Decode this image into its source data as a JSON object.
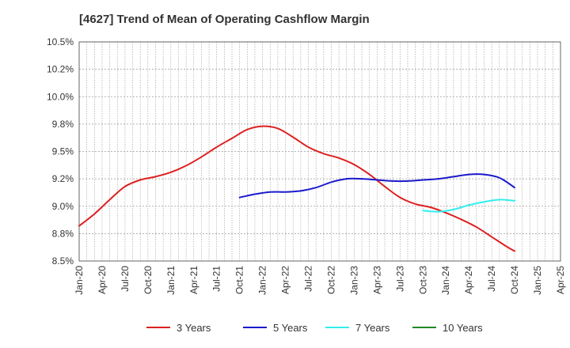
{
  "chart_data": {
    "type": "line",
    "title": "[4627]  Trend of Mean of Operating Cashflow Margin",
    "xlabel": "",
    "ylabel": "",
    "ylim": [
      8.5,
      10.5
    ],
    "yticks": [
      "8.5%",
      "8.8%",
      "9.0%",
      "9.2%",
      "9.5%",
      "9.8%",
      "10.0%",
      "10.2%",
      "10.5%"
    ],
    "xticks": [
      "Jan-20",
      "Apr-20",
      "Jul-20",
      "Oct-20",
      "Jan-21",
      "Apr-21",
      "Jul-21",
      "Oct-21",
      "Jan-22",
      "Apr-22",
      "Jul-22",
      "Oct-22",
      "Jan-23",
      "Apr-23",
      "Jul-23",
      "Oct-23",
      "Jan-24",
      "Apr-24",
      "Jul-24",
      "Oct-24",
      "Jan-25",
      "Apr-25"
    ],
    "grid": true,
    "legend_position": "bottom",
    "series": [
      {
        "name": "3 Years",
        "color": "#dd2020",
        "points": [
          [
            "Jan-20",
            8.82
          ],
          [
            "Mar-20",
            8.93
          ],
          [
            "May-20",
            9.06
          ],
          [
            "Jul-20",
            9.18
          ],
          [
            "Sep-20",
            9.24
          ],
          [
            "Nov-20",
            9.27
          ],
          [
            "Jan-21",
            9.31
          ],
          [
            "Mar-21",
            9.37
          ],
          [
            "May-21",
            9.45
          ],
          [
            "Jul-21",
            9.54
          ],
          [
            "Sep-21",
            9.62
          ],
          [
            "Nov-21",
            9.7
          ],
          [
            "Jan-22",
            9.73
          ],
          [
            "Mar-22",
            9.71
          ],
          [
            "May-22",
            9.63
          ],
          [
            "Jul-22",
            9.54
          ],
          [
            "Sep-22",
            9.48
          ],
          [
            "Nov-22",
            9.44
          ],
          [
            "Jan-23",
            9.38
          ],
          [
            "Mar-23",
            9.29
          ],
          [
            "May-23",
            9.18
          ],
          [
            "Jul-23",
            9.08
          ],
          [
            "Sep-23",
            9.02
          ],
          [
            "Nov-23",
            8.99
          ],
          [
            "Jan-24",
            8.94
          ],
          [
            "Mar-24",
            8.88
          ],
          [
            "May-24",
            8.81
          ],
          [
            "Jul-24",
            8.72
          ],
          [
            "Sep-24",
            8.63
          ],
          [
            "Oct-24",
            8.59
          ]
        ]
      },
      {
        "name": "5 Years",
        "color": "#1a1acc",
        "points": [
          [
            "Oct-21",
            9.08
          ],
          [
            "Dec-21",
            9.11
          ],
          [
            "Feb-22",
            9.13
          ],
          [
            "Apr-22",
            9.13
          ],
          [
            "Jun-22",
            9.14
          ],
          [
            "Aug-22",
            9.17
          ],
          [
            "Oct-22",
            9.22
          ],
          [
            "Dec-22",
            9.25
          ],
          [
            "Feb-23",
            9.25
          ],
          [
            "Apr-23",
            9.24
          ],
          [
            "Jun-23",
            9.23
          ],
          [
            "Aug-23",
            9.23
          ],
          [
            "Oct-23",
            9.24
          ],
          [
            "Dec-23",
            9.25
          ],
          [
            "Feb-24",
            9.27
          ],
          [
            "Apr-24",
            9.29
          ],
          [
            "Jun-24",
            9.29
          ],
          [
            "Aug-24",
            9.26
          ],
          [
            "Oct-24",
            9.17
          ]
        ]
      },
      {
        "name": "7 Years",
        "color": "#33eeee",
        "points": [
          [
            "Oct-23",
            8.96
          ],
          [
            "Dec-23",
            8.95
          ],
          [
            "Feb-24",
            8.97
          ],
          [
            "Apr-24",
            9.01
          ],
          [
            "Jun-24",
            9.04
          ],
          [
            "Aug-24",
            9.06
          ],
          [
            "Oct-24",
            9.05
          ]
        ]
      },
      {
        "name": "10 Years",
        "color": "#228822",
        "points": []
      }
    ]
  }
}
